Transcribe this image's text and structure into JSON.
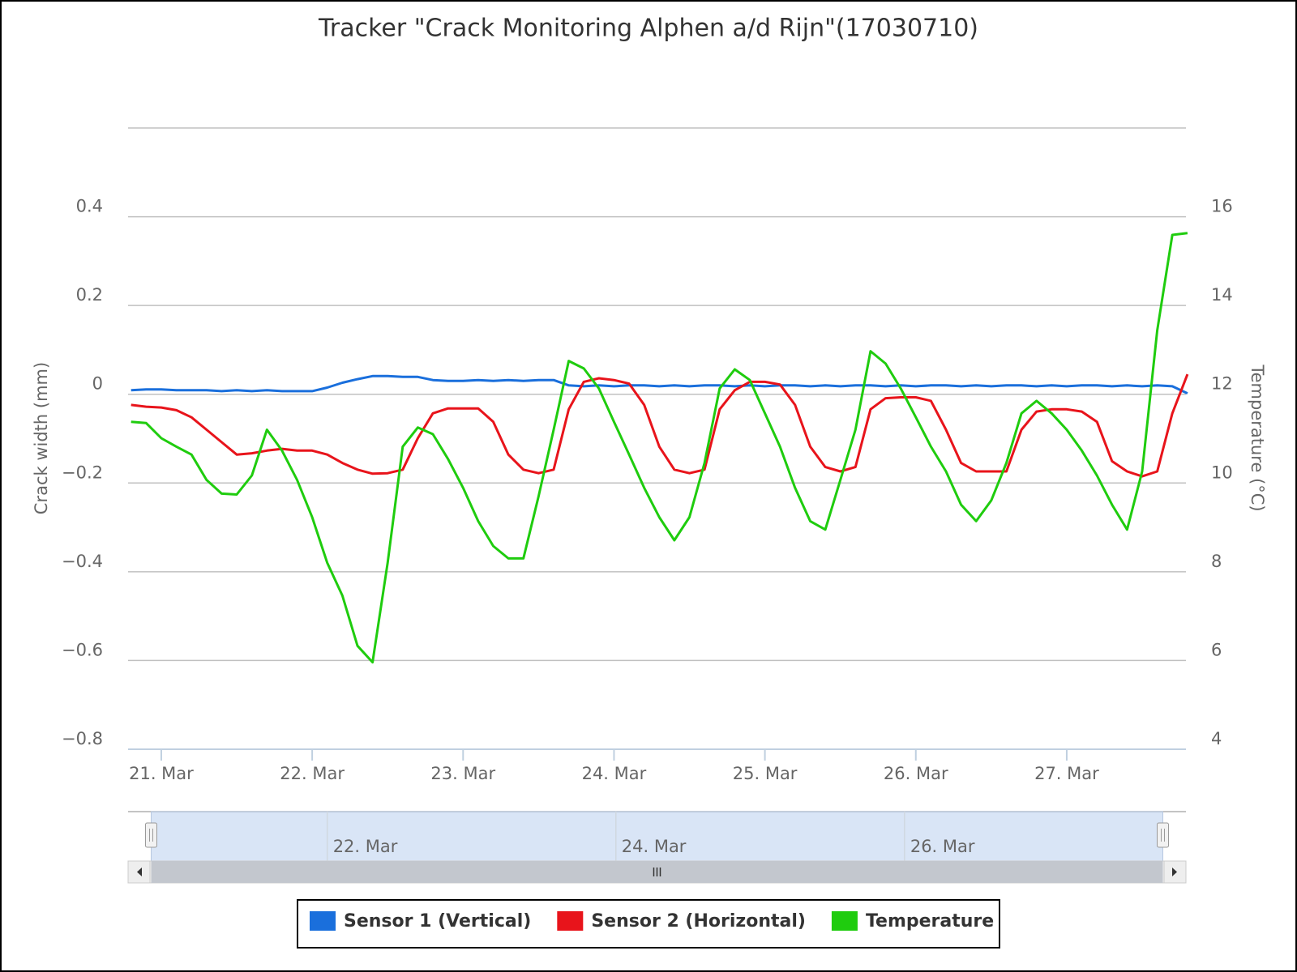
{
  "chart_data": {
    "type": "line",
    "title": "Tracker \"Crack Monitoring Alphen a/d Rijn\"(17030710)",
    "y_label": "Crack width (mm)",
    "y2_label": "Temperature (°C)",
    "x": [
      20.8,
      20.9,
      21.0,
      21.1,
      21.2,
      21.3,
      21.4,
      21.5,
      21.6,
      21.7,
      21.8,
      21.9,
      22.0,
      22.1,
      22.2,
      22.3,
      22.4,
      22.5,
      22.6,
      22.7,
      22.8,
      22.9,
      23.0,
      23.1,
      23.2,
      23.3,
      23.4,
      23.5,
      23.6,
      23.7,
      23.8,
      23.9,
      24.0,
      24.1,
      24.2,
      24.3,
      24.4,
      24.5,
      24.6,
      24.7,
      24.8,
      24.9,
      25.0,
      25.1,
      25.2,
      25.3,
      25.4,
      25.5,
      25.6,
      25.7,
      25.8,
      25.9,
      26.0,
      26.1,
      26.2,
      26.3,
      26.4,
      26.5,
      26.6,
      26.7,
      26.8,
      26.9,
      27.0,
      27.1,
      27.2,
      27.3,
      27.4,
      27.5,
      27.6,
      27.7,
      27.8
    ],
    "xlim": [
      20.78,
      27.79
    ],
    "xticks": [
      {
        "value": 21,
        "label": "21. Mar"
      },
      {
        "value": 22,
        "label": "22. Mar"
      },
      {
        "value": 23,
        "label": "23. Mar"
      },
      {
        "value": 24,
        "label": "24. Mar"
      },
      {
        "value": 25,
        "label": "25. Mar"
      },
      {
        "value": 26,
        "label": "26. Mar"
      },
      {
        "value": 27,
        "label": "27. Mar"
      }
    ],
    "ylim": [
      -0.8,
      0.6
    ],
    "yticks": [
      {
        "value": -0.8,
        "label": "−0.8"
      },
      {
        "value": -0.6,
        "label": "−0.6"
      },
      {
        "value": -0.4,
        "label": "−0.4"
      },
      {
        "value": -0.2,
        "label": "−0.2"
      },
      0,
      0.2,
      0.4
    ],
    "y2lim": [
      4,
      18
    ],
    "y2ticks": [
      4,
      6,
      8,
      10,
      12,
      14,
      16
    ],
    "grid": true,
    "legend": "bottom",
    "series": [
      {
        "name": "Sensor 1 (Vertical)",
        "color": "#1a6fdc",
        "values": [
          0.009,
          0.011,
          0.011,
          0.009,
          0.009,
          0.009,
          0.007,
          0.009,
          0.007,
          0.009,
          0.007,
          0.007,
          0.007,
          0.015,
          0.026,
          0.034,
          0.041,
          0.041,
          0.039,
          0.039,
          0.032,
          0.03,
          0.03,
          0.032,
          0.03,
          0.032,
          0.03,
          0.032,
          0.032,
          0.02,
          0.018,
          0.02,
          0.018,
          0.02,
          0.02,
          0.018,
          0.02,
          0.018,
          0.02,
          0.02,
          0.018,
          0.02,
          0.018,
          0.02,
          0.02,
          0.018,
          0.02,
          0.018,
          0.02,
          0.02,
          0.018,
          0.02,
          0.018,
          0.02,
          0.02,
          0.018,
          0.02,
          0.018,
          0.02,
          0.02,
          0.018,
          0.02,
          0.018,
          0.02,
          0.02,
          0.018,
          0.02,
          0.018,
          0.02,
          0.018,
          0.002
        ]
      },
      {
        "name": "Sensor 2 (Horizontal)",
        "color": "#e8141b",
        "values": [
          -0.024,
          -0.028,
          -0.03,
          -0.036,
          -0.052,
          -0.08,
          -0.108,
          -0.136,
          -0.133,
          -0.127,
          -0.123,
          -0.127,
          -0.127,
          -0.136,
          -0.155,
          -0.17,
          -0.179,
          -0.178,
          -0.17,
          -0.099,
          -0.043,
          -0.032,
          -0.032,
          -0.032,
          -0.062,
          -0.136,
          -0.17,
          -0.178,
          -0.17,
          -0.034,
          0.028,
          0.036,
          0.032,
          0.024,
          -0.024,
          -0.118,
          -0.17,
          -0.178,
          -0.17,
          -0.034,
          0.009,
          0.028,
          0.028,
          0.022,
          -0.024,
          -0.118,
          -0.164,
          -0.174,
          -0.164,
          -0.034,
          -0.009,
          -0.007,
          -0.007,
          -0.015,
          -0.08,
          -0.155,
          -0.174,
          -0.174,
          -0.174,
          -0.08,
          -0.039,
          -0.034,
          -0.034,
          -0.039,
          -0.062,
          -0.151,
          -0.174,
          -0.185,
          -0.174,
          -0.043,
          0.045
        ]
      },
      {
        "name": "Temperature",
        "color": "#1fcc0e",
        "axis": "y2",
        "values": [
          11.38,
          11.35,
          11.01,
          10.82,
          10.64,
          10.07,
          9.76,
          9.74,
          10.17,
          11.2,
          10.73,
          10.07,
          9.23,
          8.2,
          7.46,
          6.33,
          5.96,
          8.2,
          10.82,
          11.25,
          11.1,
          10.54,
          9.89,
          9.14,
          8.58,
          8.3,
          8.3,
          9.7,
          11.2,
          12.75,
          12.58,
          12.13,
          11.38,
          10.64,
          9.89,
          9.23,
          8.71,
          9.23,
          10.45,
          12.13,
          12.56,
          12.32,
          11.57,
          10.82,
          9.89,
          9.14,
          8.95,
          10.07,
          11.2,
          12.97,
          12.69,
          12.13,
          11.48,
          10.82,
          10.26,
          9.51,
          9.14,
          9.61,
          10.45,
          11.57,
          11.85,
          11.57,
          11.2,
          10.73,
          10.17,
          9.51,
          8.95,
          10.26,
          13.44,
          15.59,
          15.63
        ]
      }
    ],
    "navigator": {
      "xlim": [
        20.62,
        27.95
      ],
      "xticks": [
        {
          "value": 22,
          "label": "22. Mar"
        },
        {
          "value": 24,
          "label": "24. Mar"
        },
        {
          "value": 26,
          "label": "26. Mar"
        }
      ]
    }
  }
}
